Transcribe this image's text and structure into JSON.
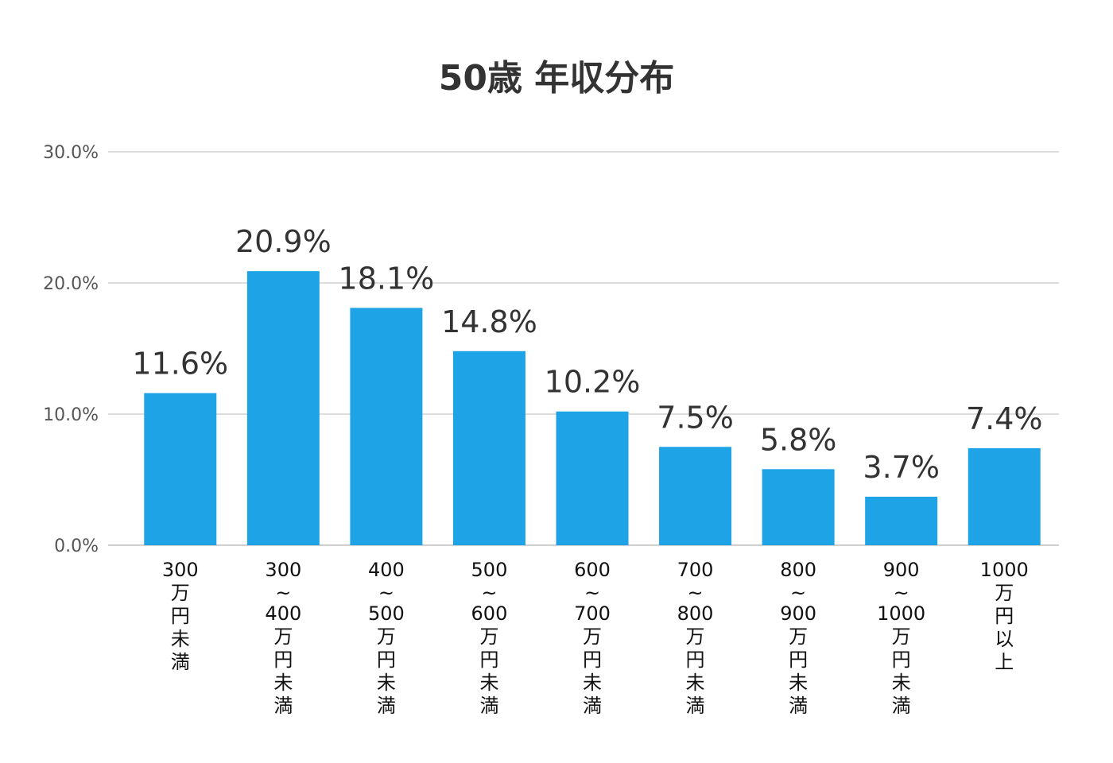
{
  "chart_data": {
    "type": "bar",
    "title": "50歳 年収分布",
    "xlabel": "",
    "ylabel": "",
    "ylim": [
      0,
      30
    ],
    "yticks": [
      "0.0%",
      "10.0%",
      "20.0%",
      "30.0%"
    ],
    "grid": true,
    "legend": "none",
    "bar_color": "#1EA4E6",
    "categories": [
      [
        "300",
        "万",
        "円",
        "未",
        "満"
      ],
      [
        "300",
        "~",
        "400",
        "万",
        "円",
        "未",
        "満"
      ],
      [
        "400",
        "~",
        "500",
        "万",
        "円",
        "未",
        "満"
      ],
      [
        "500",
        "~",
        "600",
        "万",
        "円",
        "未",
        "満"
      ],
      [
        "600",
        "~",
        "700",
        "万",
        "円",
        "未",
        "満"
      ],
      [
        "700",
        "~",
        "800",
        "万",
        "円",
        "未",
        "満"
      ],
      [
        "800",
        "~",
        "900",
        "万",
        "円",
        "未",
        "満"
      ],
      [
        "900",
        "~",
        "1000",
        "万",
        "円",
        "未",
        "満"
      ],
      [
        "1000",
        "万",
        "円",
        "以",
        "上"
      ]
    ],
    "values": [
      11.6,
      20.9,
      18.1,
      14.8,
      10.2,
      7.5,
      5.8,
      3.7,
      7.4
    ],
    "data_labels": [
      "11.6%",
      "20.9%",
      "18.1%",
      "14.8%",
      "10.2%",
      "7.5%",
      "5.8%",
      "3.7%",
      "7.4%"
    ]
  }
}
